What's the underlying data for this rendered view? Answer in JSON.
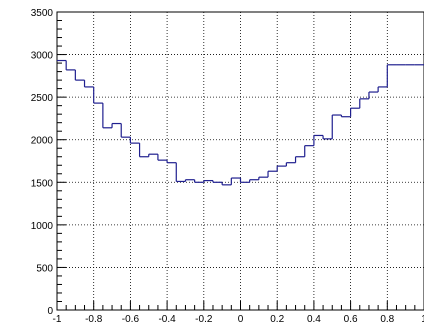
{
  "chart_data": {
    "type": "line",
    "subtype": "step histogram",
    "title": "",
    "xlabel": "",
    "ylabel": "",
    "xlim": [
      -1,
      1
    ],
    "ylim": [
      0,
      3500
    ],
    "grid": true,
    "line_color": "#1f1f8f",
    "grid_color": "#000000",
    "x_ticks": [
      -1,
      -0.8,
      -0.6,
      -0.4,
      -0.2,
      0,
      0.2,
      0.4,
      0.6,
      0.8,
      1
    ],
    "x_tick_labels": [
      "-1",
      "-0.8",
      "-0.6",
      "-0.4",
      "-0.2",
      "0",
      "0.2",
      "0.4",
      "0.6",
      "0.8",
      "1"
    ],
    "y_ticks": [
      0,
      500,
      1000,
      1500,
      2000,
      2500,
      3000,
      3500
    ],
    "y_tick_labels": [
      "0",
      "500",
      "1000",
      "1500",
      "2000",
      "2500",
      "3000",
      "3500"
    ],
    "bin_edges": [
      -1,
      -0.95,
      -0.9,
      -0.85,
      -0.8,
      -0.75,
      -0.7,
      -0.65,
      -0.6,
      -0.55,
      -0.5,
      -0.45,
      -0.4,
      -0.35,
      -0.3,
      -0.25,
      -0.2,
      -0.15,
      -0.1,
      -0.05,
      0,
      0.05,
      0.1,
      0.15,
      0.2,
      0.25,
      0.3,
      0.35,
      0.4,
      0.45,
      0.5,
      0.55,
      0.6,
      0.65,
      0.7,
      0.75,
      0.8,
      0.85,
      0.9,
      0.95,
      1
    ],
    "values": [
      2930,
      2820,
      2700,
      2620,
      2430,
      2140,
      2190,
      2030,
      1960,
      1800,
      1830,
      1760,
      1730,
      1510,
      1530,
      1500,
      1520,
      1500,
      1470,
      1550,
      1500,
      1530,
      1560,
      1630,
      1690,
      1730,
      1800,
      1930,
      2050,
      2010,
      2290,
      2270,
      2370,
      2480,
      2560,
      2620,
      2880,
      2880,
      2880,
      2880
    ]
  }
}
